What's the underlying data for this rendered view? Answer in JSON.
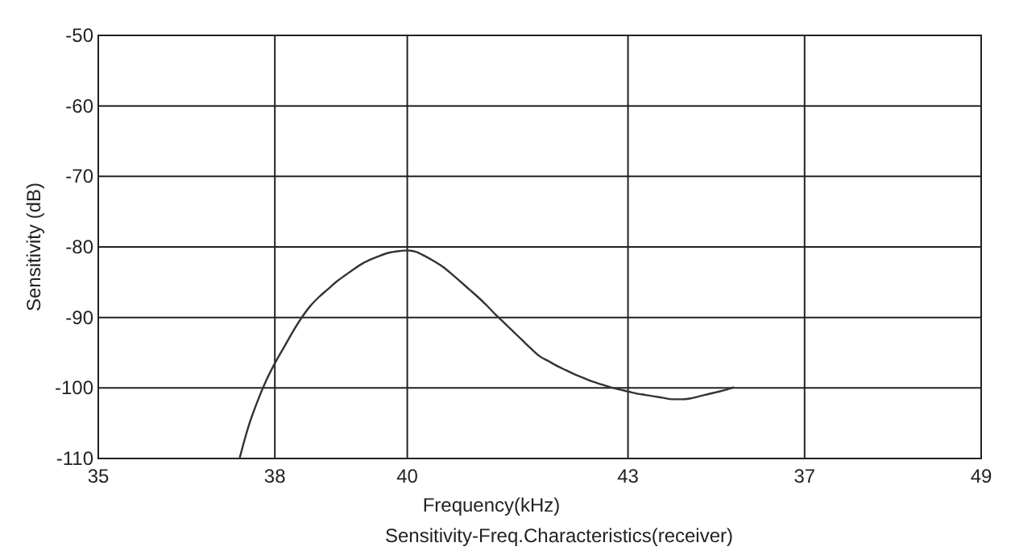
{
  "chart_data": {
    "type": "line",
    "title": "Sensitivity-Freq.Characteristics(receiver)",
    "xlabel": "Frequency(kHz)",
    "ylabel": "Sensitivity (dB)",
    "categories": [
      "35",
      null,
      null,
      null,
      null,
      null,
      null,
      null,
      null,
      null,
      null,
      null,
      null,
      null,
      null,
      null,
      null,
      null,
      null,
      null,
      "38",
      null,
      null,
      null,
      null,
      null,
      null,
      null,
      null,
      null,
      null,
      null,
      null,
      null,
      null,
      "40",
      null,
      null,
      null,
      null,
      null,
      null,
      null,
      null,
      null,
      null,
      null,
      null,
      null,
      null,
      null,
      null,
      null,
      null,
      null,
      null,
      null,
      null,
      null,
      null,
      "43",
      null,
      null,
      null,
      null,
      null,
      null,
      null,
      null,
      null,
      null,
      null,
      null,
      null,
      null,
      null,
      null,
      null,
      null,
      null,
      "37",
      null,
      null,
      null,
      null,
      null,
      null,
      null,
      null,
      null,
      null,
      null,
      null,
      null,
      null,
      null,
      null,
      null,
      null,
      null,
      "49"
    ],
    "ylim": [
      -110,
      -50
    ],
    "yticks": [
      -110,
      -100,
      -90,
      -80,
      -70,
      -60,
      -50
    ],
    "grid": true,
    "series": [
      {
        "color": "#333333",
        "values": [
          null,
          null,
          null,
          null,
          null,
          null,
          null,
          null,
          null,
          null,
          null,
          null,
          null,
          null,
          null,
          null,
          -110,
          -105.5,
          -102,
          -99,
          -96.5,
          -94.3,
          -92.1,
          -90.1,
          -88.4,
          -87.1,
          -86,
          -84.9,
          -84,
          -83.1,
          -82.3,
          -81.7,
          -81.2,
          -80.8,
          -80.6,
          -80.5,
          -80.7,
          -81.3,
          -82,
          -82.8,
          -83.8,
          -84.9,
          -86,
          -87.1,
          -88.3,
          -89.6,
          -90.8,
          -92,
          -93.2,
          -94.4,
          -95.5,
          -96.2,
          -96.9,
          -97.5,
          -98.1,
          -98.6,
          -99.1,
          -99.5,
          -99.9,
          -100.2,
          -100.5,
          -100.8,
          -101,
          -101.2,
          -101.4,
          -101.6,
          -101.6,
          -101.5,
          -101.2,
          -100.9,
          -100.6,
          -100.3,
          -99.9,
          null,
          null,
          null,
          null,
          null,
          null,
          null,
          null,
          null,
          null,
          null,
          null,
          null,
          null,
          null,
          null,
          null,
          null,
          null,
          null,
          null,
          null,
          null,
          null,
          null,
          null,
          null,
          null
        ]
      }
    ]
  }
}
